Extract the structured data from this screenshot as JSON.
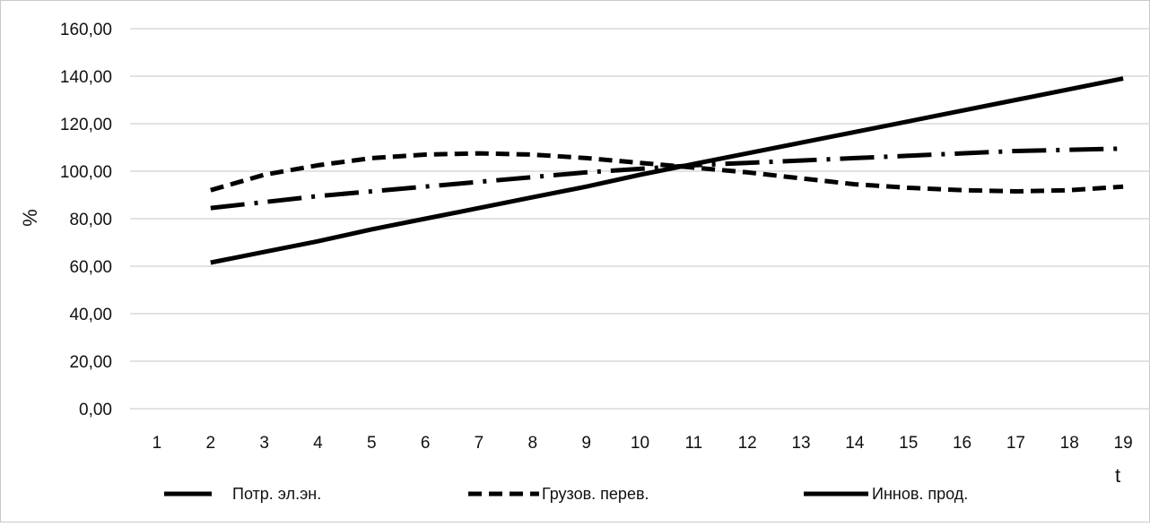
{
  "chart_data": {
    "type": "line",
    "title": "",
    "xlabel": "t",
    "ylabel": "%",
    "ylim": [
      0,
      160
    ],
    "y_ticks": [
      0,
      20,
      40,
      60,
      80,
      100,
      120,
      140,
      160
    ],
    "y_tick_labels": [
      "0,00",
      "20,00",
      "40,00",
      "60,00",
      "80,00",
      "100,00",
      "120,00",
      "140,00",
      "160,00"
    ],
    "categories": [
      "1",
      "2",
      "3",
      "4",
      "5",
      "6",
      "7",
      "8",
      "9",
      "10",
      "11",
      "12",
      "13",
      "14",
      "15",
      "16",
      "17",
      "18",
      "19"
    ],
    "grid": true,
    "legend_position": "bottom",
    "series": [
      {
        "name": "Потр. эл.эн.",
        "style": "dashdot",
        "color": "#000000",
        "values": [
          null,
          84.5,
          87.0,
          89.5,
          91.5,
          93.5,
          95.5,
          97.5,
          99.5,
          101.0,
          102.5,
          103.5,
          104.5,
          105.5,
          106.5,
          107.5,
          108.5,
          109.0,
          109.5
        ]
      },
      {
        "name": "Грузов. перев.",
        "style": "dashed",
        "color": "#000000",
        "values": [
          null,
          92.0,
          98.5,
          102.5,
          105.5,
          107.0,
          107.5,
          107.0,
          105.5,
          103.5,
          101.5,
          99.5,
          97.0,
          94.5,
          93.0,
          92.0,
          91.5,
          92.0,
          93.5
        ]
      },
      {
        "name": "Иннов. прод.",
        "style": "solid",
        "color": "#000000",
        "values": [
          null,
          61.5,
          66.0,
          70.5,
          75.5,
          80.0,
          84.5,
          89.0,
          93.5,
          98.5,
          103.0,
          107.5,
          112.0,
          116.5,
          121.0,
          125.5,
          130.0,
          134.5,
          139.0
        ]
      }
    ]
  }
}
